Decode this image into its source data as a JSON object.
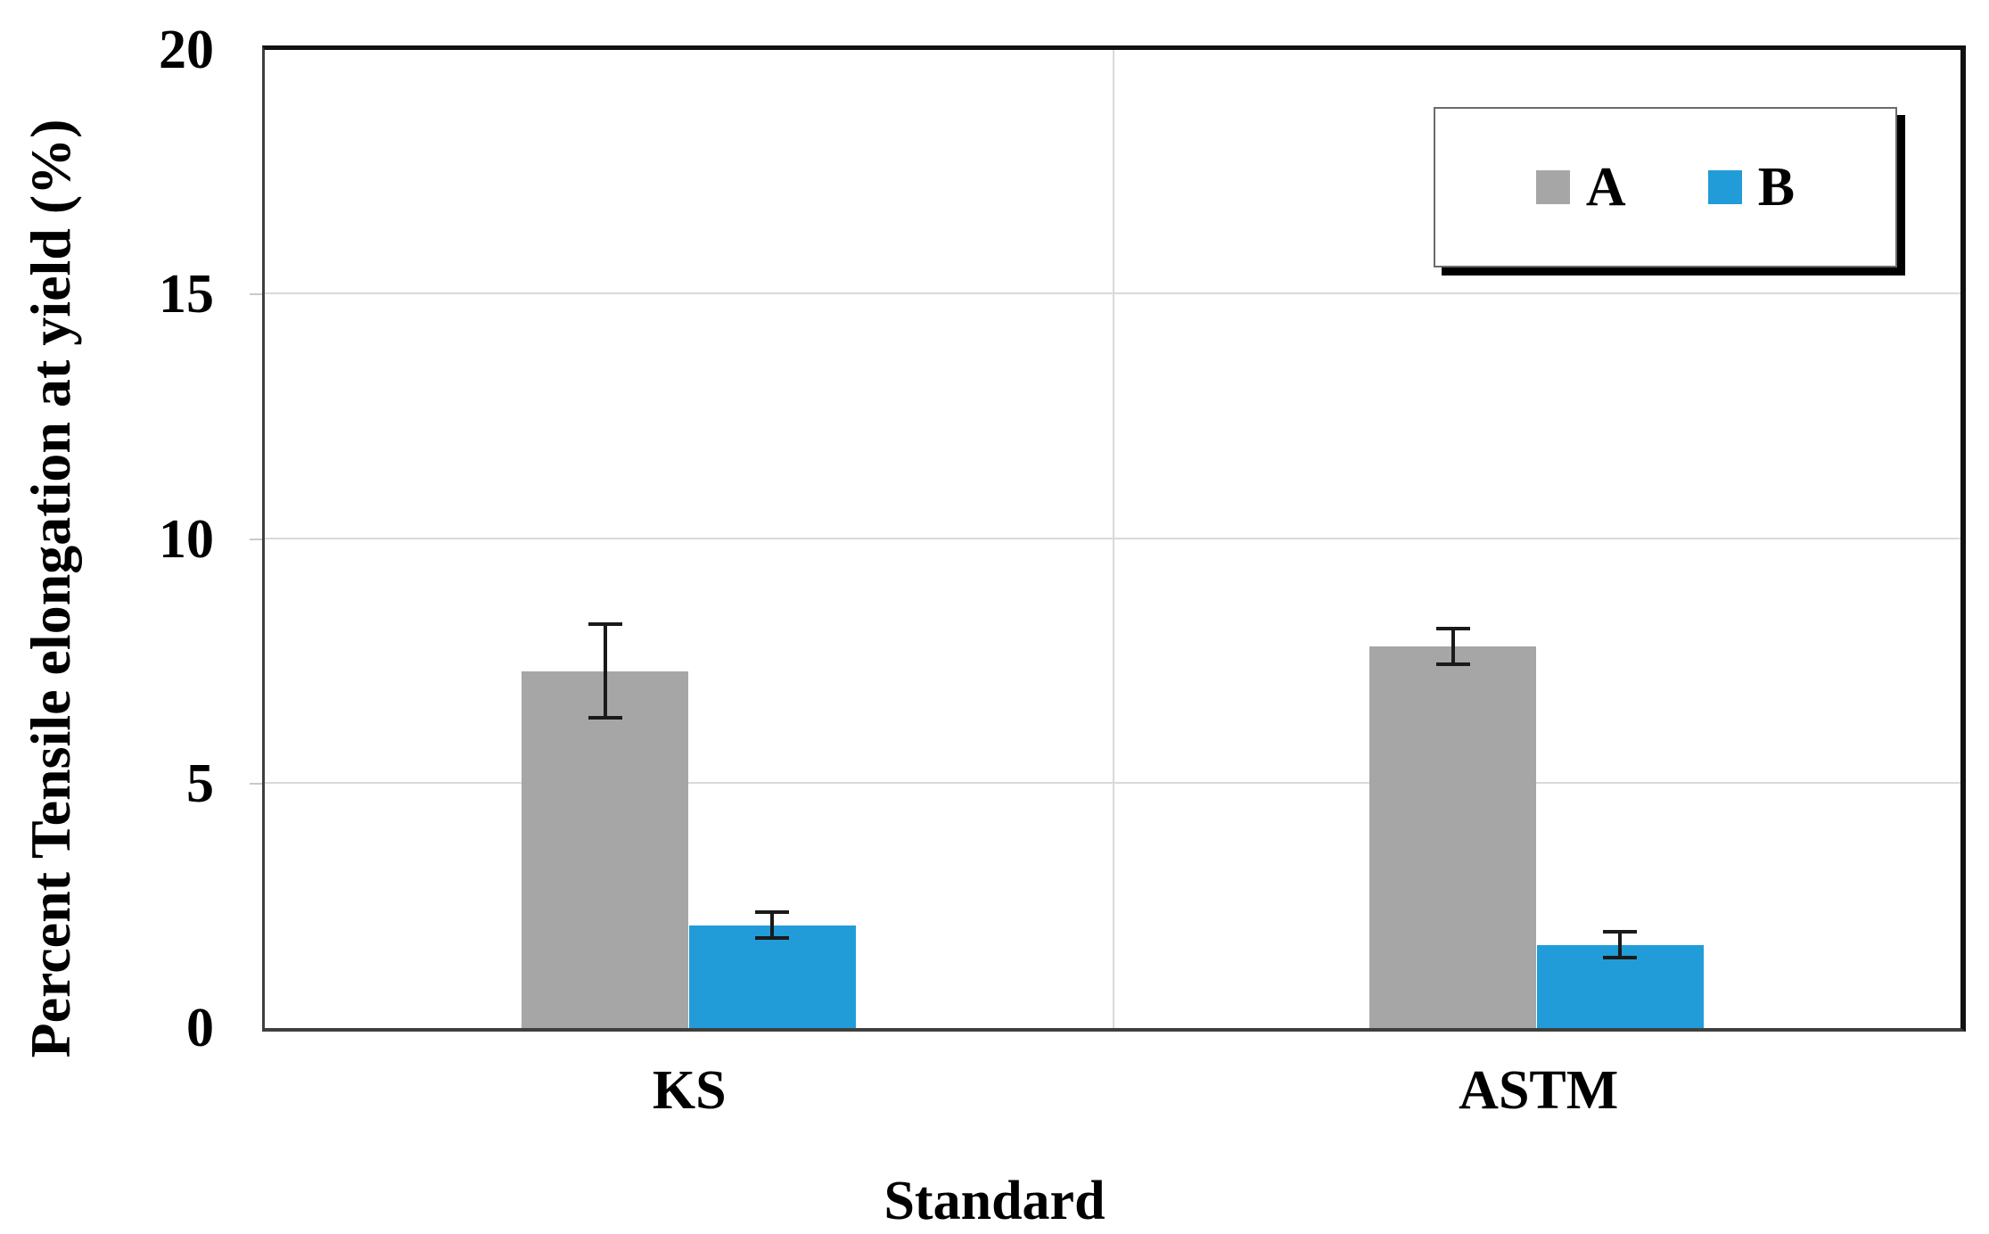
{
  "chart_data": {
    "type": "bar",
    "title": "",
    "xlabel": "Standard",
    "ylabel": "Percent Tensile elongation at yield (%)",
    "categories": [
      "KS",
      "ASTM"
    ],
    "series": [
      {
        "name": "A",
        "color": "#a6a6a6",
        "values": [
          7.3,
          7.8
        ],
        "errors": [
          1.0,
          0.4
        ]
      },
      {
        "name": "B",
        "color": "#219cd9",
        "values": [
          2.1,
          1.7
        ],
        "errors": [
          0.3,
          0.3
        ]
      }
    ],
    "ylim": [
      0,
      20
    ],
    "yticks": [
      0,
      5,
      10,
      15,
      20
    ],
    "grid": true,
    "gridline_interval": 5,
    "legend_position": "top-right",
    "error_bars": true
  },
  "styles": {
    "background": "#ffffff",
    "gridline_color": "#d9d9d9",
    "frame_color": "#111111",
    "error_bar_color": "#1a1a1a",
    "text_color": "#000000",
    "legend_shadow_color": "#000000"
  }
}
